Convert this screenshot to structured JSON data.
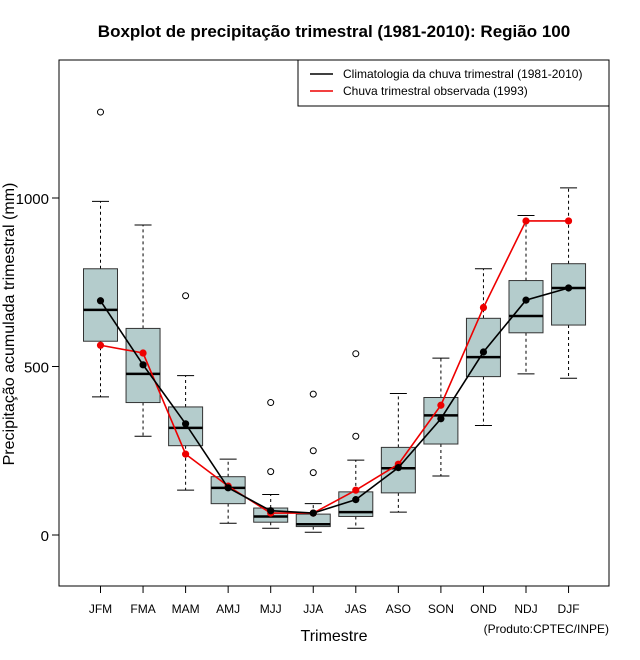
{
  "chart_data": {
    "type": "boxplot",
    "title": "Boxplot de precipitação trimestral (1981-2010): Região 100",
    "xlabel": "Trimestre",
    "ylabel": "Precipitação acumulada trimestral (mm)",
    "ylim": [
      -150,
      1420
    ],
    "yticks": [
      0,
      500,
      1000
    ],
    "credit": "(Produto:CPTEC/INPE)",
    "categories": [
      "JFM",
      "FMA",
      "MAM",
      "AMJ",
      "MJJ",
      "JJA",
      "JAS",
      "ASO",
      "SON",
      "OND",
      "NDJ",
      "DJF"
    ],
    "boxes": [
      {
        "whisker_low": 410,
        "q1": 575,
        "median": 668,
        "q3": 790,
        "whisker_high": 990,
        "outliers": [
          1255
        ]
      },
      {
        "whisker_low": 293,
        "q1": 393,
        "median": 478,
        "q3": 613,
        "whisker_high": 920,
        "outliers": []
      },
      {
        "whisker_low": 133,
        "q1": 265,
        "median": 318,
        "q3": 380,
        "whisker_high": 473,
        "outliers": [
          710
        ]
      },
      {
        "whisker_low": 35,
        "q1": 93,
        "median": 140,
        "q3": 173,
        "whisker_high": 225,
        "outliers": []
      },
      {
        "whisker_low": 20,
        "q1": 38,
        "median": 55,
        "q3": 80,
        "whisker_high": 120,
        "outliers": [
          393,
          188
        ]
      },
      {
        "whisker_low": 8,
        "q1": 25,
        "median": 32,
        "q3": 62,
        "whisker_high": 93,
        "outliers": [
          418,
          250,
          185
        ]
      },
      {
        "whisker_low": 20,
        "q1": 55,
        "median": 68,
        "q3": 128,
        "whisker_high": 222,
        "outliers": [
          538,
          293
        ]
      },
      {
        "whisker_low": 68,
        "q1": 125,
        "median": 198,
        "q3": 260,
        "whisker_high": 420,
        "outliers": []
      },
      {
        "whisker_low": 175,
        "q1": 270,
        "median": 355,
        "q3": 408,
        "whisker_high": 525,
        "outliers": []
      },
      {
        "whisker_low": 325,
        "q1": 470,
        "median": 528,
        "q3": 643,
        "whisker_high": 790,
        "outliers": []
      },
      {
        "whisker_low": 478,
        "q1": 600,
        "median": 650,
        "q3": 755,
        "whisker_high": 948,
        "outliers": []
      },
      {
        "whisker_low": 465,
        "q1": 623,
        "median": 733,
        "q3": 805,
        "whisker_high": 1030,
        "outliers": []
      }
    ],
    "series": [
      {
        "name": "Climatologia da chuva trimestral (1981-2010)",
        "color": "#000000",
        "values": [
          695,
          505,
          330,
          140,
          72,
          65,
          105,
          200,
          345,
          543,
          697,
          733
        ]
      },
      {
        "name": "Chuva trimestral observada (1993)",
        "color": "#ee0000",
        "values": [
          563,
          540,
          240,
          145,
          65,
          65,
          133,
          210,
          385,
          675,
          932,
          932
        ]
      }
    ],
    "box_fill": "#b4cccc",
    "legend_position": "top-right"
  }
}
